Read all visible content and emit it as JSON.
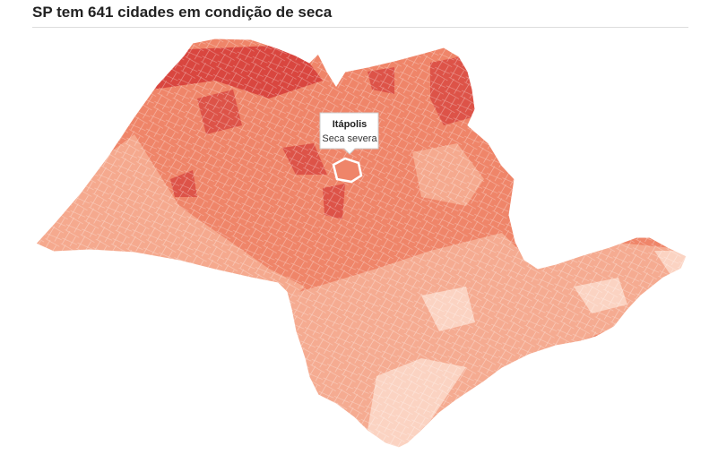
{
  "header": {
    "title": "SP tem 641 cidades em condição de seca"
  },
  "tooltip": {
    "name": "Itápolis",
    "label": "Seca severa"
  }
}
